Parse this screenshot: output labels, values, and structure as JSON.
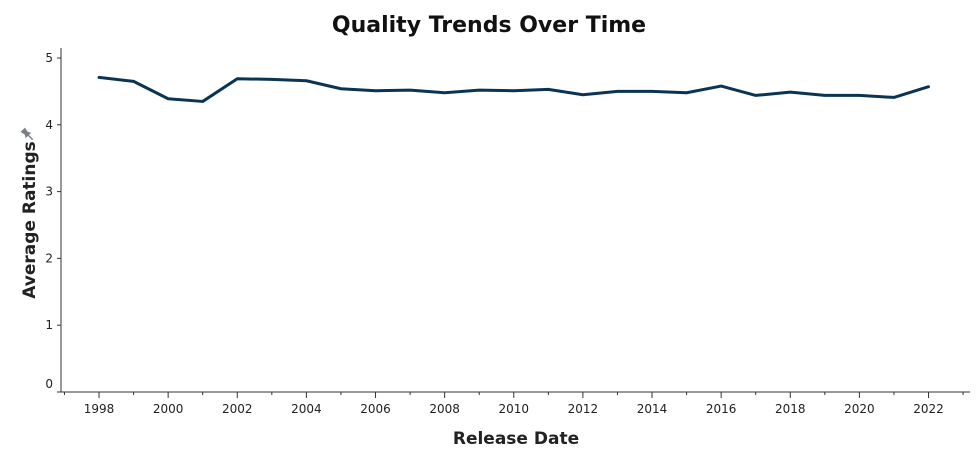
{
  "chart_data": {
    "type": "line",
    "title": "Quality Trends Over Time",
    "xlabel": "Release Date",
    "ylabel": "Average Ratings",
    "x": [
      1998,
      1999,
      2000,
      2001,
      2002,
      2003,
      2004,
      2005,
      2006,
      2007,
      2008,
      2009,
      2010,
      2011,
      2012,
      2013,
      2014,
      2015,
      2016,
      2017,
      2018,
      2019,
      2020,
      2021,
      2022
    ],
    "series": [
      {
        "values": [
          4.71,
          4.65,
          4.39,
          4.35,
          4.69,
          4.68,
          4.66,
          4.54,
          4.51,
          4.52,
          4.48,
          4.52,
          4.51,
          4.53,
          4.45,
          4.5,
          4.5,
          4.48,
          4.58,
          4.44,
          4.49,
          4.44,
          4.44,
          4.41,
          4.57
        ]
      }
    ],
    "x_ticks": [
      "1998",
      "2000",
      "2002",
      "2004",
      "2006",
      "2008",
      "2010",
      "2012",
      "2014",
      "2016",
      "2018",
      "2020",
      "2022"
    ],
    "y_ticks": [
      "0",
      "1",
      "2",
      "3",
      "4",
      "5"
    ],
    "xlim": [
      1996.9,
      2023.2
    ],
    "ylim": [
      0,
      5.15
    ],
    "grid": false,
    "line_color": "#0b3354",
    "axis_marker_icon": "pin-icon"
  }
}
